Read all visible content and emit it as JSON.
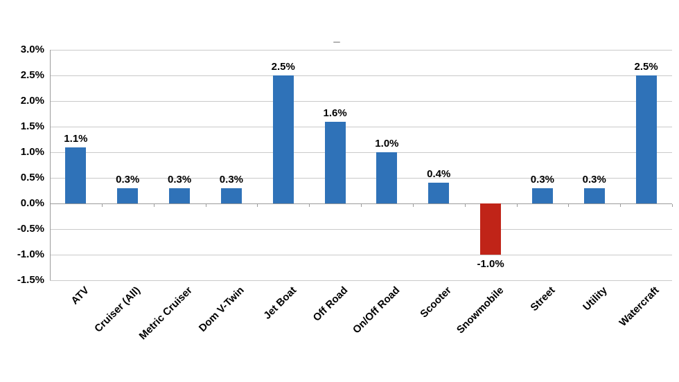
{
  "chart_data": {
    "type": "bar",
    "title": "",
    "xlabel": "",
    "ylabel": "",
    "categories": [
      "ATV",
      "Cruiser (All)",
      "Metric Cruiser",
      "Dom V-Twin",
      "Jet Boat",
      "Off Road",
      "On/Off Road",
      "Scooter",
      "Snowmobile",
      "Street",
      "Utility",
      "Watercraft"
    ],
    "values": [
      1.1,
      0.3,
      0.3,
      0.3,
      2.5,
      1.6,
      1.0,
      0.4,
      -1.0,
      0.3,
      0.3,
      2.5
    ],
    "data_labels": [
      "1.1%",
      "0.3%",
      "0.3%",
      "0.3%",
      "2.5%",
      "1.6%",
      "1.0%",
      "0.4%",
      "-1.0%",
      "0.3%",
      "0.3%",
      "2.5%"
    ],
    "ylim": [
      -1.5,
      3.0
    ],
    "ytick_step": 0.5,
    "ytick_labels": [
      "3.0%",
      "2.5%",
      "2.0%",
      "1.5%",
      "1.0%",
      "0.5%",
      "0.0%",
      "-0.5%",
      "-1.0%",
      "-1.5%"
    ],
    "grid": true,
    "legend_position": "none",
    "colors": {
      "positive_bar": "#2F72B8",
      "negative_bar": "#C02418",
      "gridline": "#C9C9C9",
      "axis_line": "#9B9B9B",
      "text": "#000000",
      "legend_dash": "#B3B3B3",
      "background": "#FFFFFF"
    }
  }
}
